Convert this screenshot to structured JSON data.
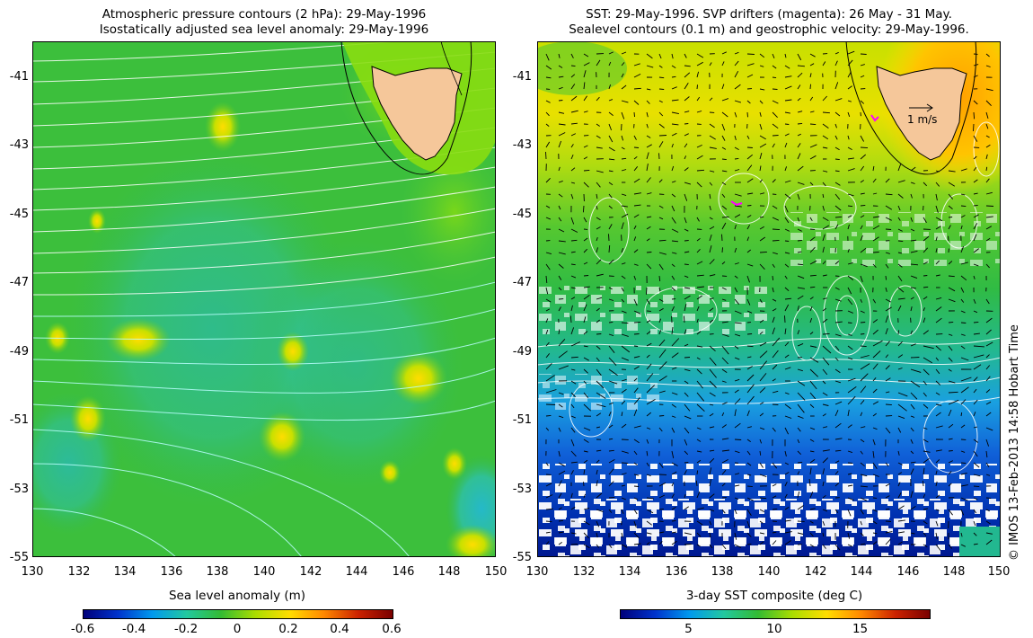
{
  "left_panel": {
    "title_line1": "Atmospheric pressure contours (2 hPa): 29-May-1996",
    "title_line2": "Isostatically adjusted sea level anomaly: 29-May-1996",
    "colorbar_title": "Sea level anomaly (m)",
    "colorbar_ticks": [
      "-0.6",
      "-0.4",
      "-0.2",
      "0",
      "0.2",
      "0.4",
      "0.6"
    ],
    "colorbar_range": [
      -0.6,
      0.6
    ],
    "colorbar_colors": [
      "#00007a",
      "#0033cc",
      "#0099ee",
      "#22c8a0",
      "#33bb33",
      "#aadd00",
      "#ffdd00",
      "#ff8800",
      "#cc2200",
      "#7a0000"
    ]
  },
  "right_panel": {
    "title_line1": "SST: 29-May-1996. SVP drifters (magenta): 26 May - 31 May.",
    "title_line2": "Sealevel contours (0.1 m) and geostrophic velocity: 29-May-1996.",
    "colorbar_title": "3-day SST composite (deg C)",
    "colorbar_ticks": [
      "5",
      "10",
      "15"
    ],
    "colorbar_tick_values": [
      5,
      10,
      15
    ],
    "colorbar_range": [
      1,
      19
    ],
    "colorbar_colors": [
      "#00007a",
      "#0033cc",
      "#0099ee",
      "#22c8a0",
      "#33bb33",
      "#aadd00",
      "#ffdd00",
      "#ff8800",
      "#cc2200",
      "#7a0000"
    ],
    "velocity_legend": "1 m/s"
  },
  "axes": {
    "x_ticks": [
      "130",
      "132",
      "134",
      "136",
      "138",
      "140",
      "142",
      "144",
      "146",
      "148",
      "150"
    ],
    "y_ticks": [
      "-41",
      "-43",
      "-45",
      "-47",
      "-49",
      "-51",
      "-53",
      "-55"
    ],
    "lon_range": [
      130,
      150
    ],
    "lat_range": [
      -55,
      -40
    ]
  },
  "credit": "© IMOS 13-Feb-2013 14:58 Hobart Time",
  "colors": {
    "land": "#f5c79a",
    "coast": "#000000",
    "ocean_base": "#33bb33",
    "drifter": "#ff00ff",
    "contour": "#ffffff"
  }
}
